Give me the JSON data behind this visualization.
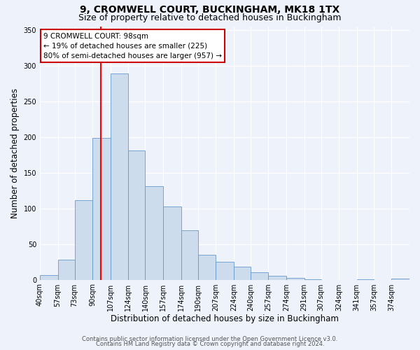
{
  "title": "9, CROMWELL COURT, BUCKINGHAM, MK18 1TX",
  "subtitle": "Size of property relative to detached houses in Buckingham",
  "xlabel": "Distribution of detached houses by size in Buckingham",
  "ylabel": "Number of detached properties",
  "bin_labels": [
    "40sqm",
    "57sqm",
    "73sqm",
    "90sqm",
    "107sqm",
    "124sqm",
    "140sqm",
    "157sqm",
    "174sqm",
    "190sqm",
    "207sqm",
    "224sqm",
    "240sqm",
    "257sqm",
    "274sqm",
    "291sqm",
    "307sqm",
    "324sqm",
    "341sqm",
    "357sqm",
    "374sqm"
  ],
  "bar_heights": [
    6,
    28,
    111,
    199,
    289,
    181,
    131,
    103,
    69,
    35,
    25,
    18,
    10,
    5,
    3,
    1,
    0,
    0,
    1,
    0,
    2
  ],
  "bar_color": "#ccdcec",
  "bar_edge_color": "#6699cc",
  "vline_x": 98,
  "vline_label": "9 CROMWELL COURT: 98sqm",
  "annotation_line1": "← 19% of detached houses are smaller (225)",
  "annotation_line2": "80% of semi-detached houses are larger (957) →",
  "annotation_box_color": "#ffffff",
  "annotation_box_edge": "#cc0000",
  "ylim": [
    0,
    355
  ],
  "yticks": [
    0,
    50,
    100,
    150,
    200,
    250,
    300,
    350
  ],
  "bin_edges": [
    40,
    57,
    73,
    90,
    107,
    124,
    140,
    157,
    174,
    190,
    207,
    224,
    240,
    257,
    274,
    291,
    307,
    324,
    341,
    357,
    374,
    391
  ],
  "footer1": "Contains HM Land Registry data © Crown copyright and database right 2024.",
  "footer2": "Contains public sector information licensed under the Open Government Licence v3.0.",
  "bg_color": "#eef2fb",
  "grid_color": "#ffffff",
  "title_fontsize": 10,
  "subtitle_fontsize": 9,
  "axis_label_fontsize": 8.5,
  "tick_fontsize": 7,
  "footer_fontsize": 6,
  "annot_fontsize": 7.5
}
